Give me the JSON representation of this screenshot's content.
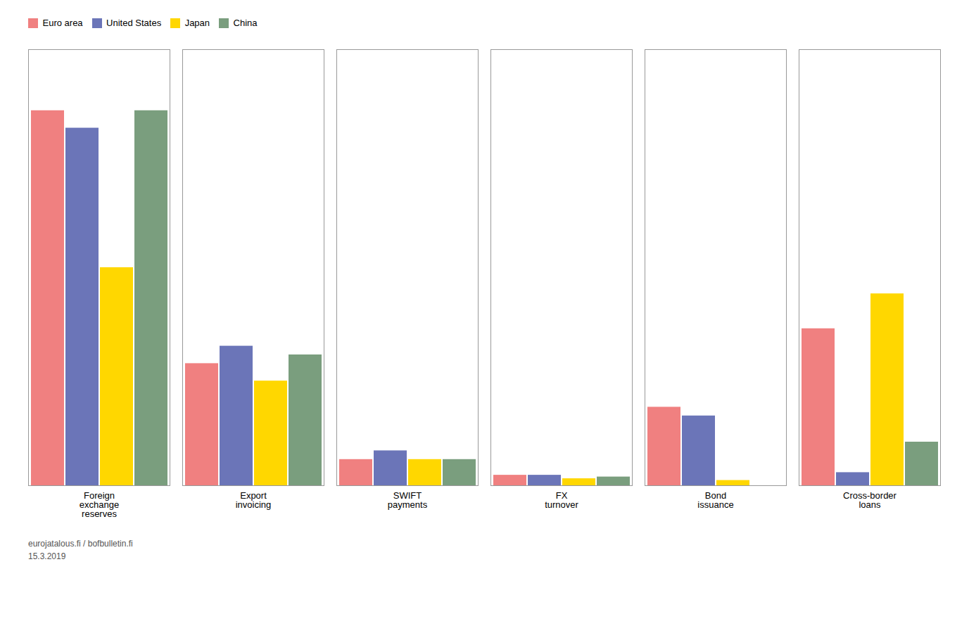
{
  "chart_data": {
    "type": "bar",
    "categories": [
      "Foreign\nexchange\nreserves",
      "Export\ninvoicing",
      "SWIFT\npayments",
      "FX\nturnover",
      "Bond\nissuance",
      "Cross-border\nloans"
    ],
    "series": [
      {
        "name": "Euro area",
        "color": "#f08080",
        "values": [
          43,
          14,
          3,
          1.2,
          9,
          18
        ]
      },
      {
        "name": "United States",
        "color": "#6b75b8",
        "values": [
          41,
          16,
          4,
          1.2,
          8,
          1.5
        ]
      },
      {
        "name": "Japan",
        "color": "#ffd700",
        "values": [
          25,
          12,
          3,
          0.8,
          0.6,
          22
        ]
      },
      {
        "name": "China",
        "color": "#7a9e7e",
        "values": [
          43,
          15,
          3,
          1.0,
          0.0,
          5
        ]
      }
    ],
    "ylim": [
      0,
      50
    ],
    "tick_labels": "x",
    "grid": false,
    "legend": "top",
    "annotations": [
      "eurojatalous.fi / bofbulletin.fi",
      "15.3.2019"
    ]
  }
}
